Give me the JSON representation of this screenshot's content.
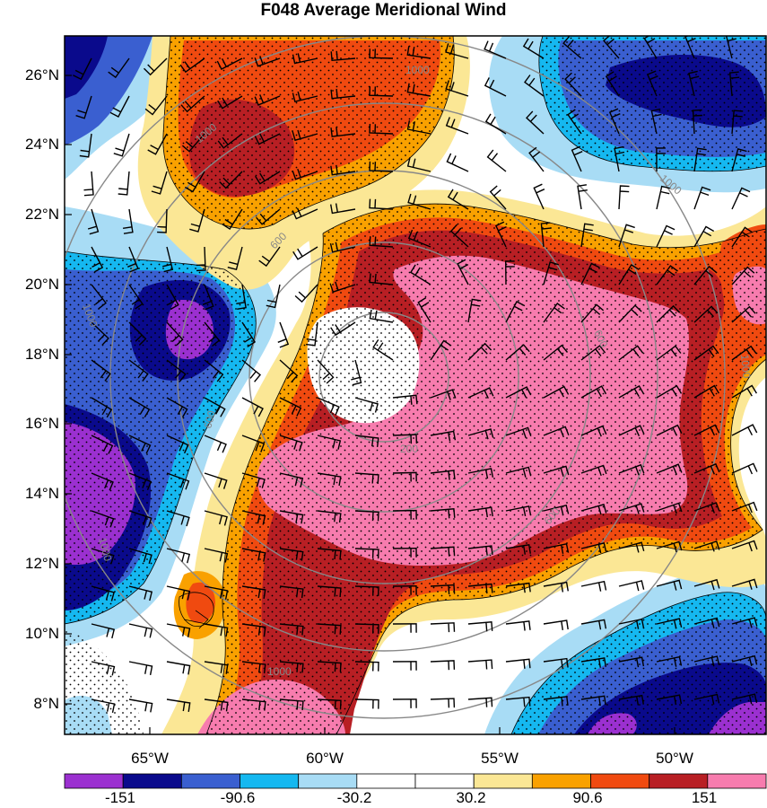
{
  "title": "F048 Average Meridional Wind",
  "map": {
    "lat_labels": [
      "26°N",
      "24°N",
      "22°N",
      "20°N",
      "18°N",
      "16°N",
      "14°N",
      "12°N",
      "10°N",
      "8°N"
    ],
    "lon_labels": [
      "65°W",
      "60°W",
      "55°W",
      "50°W"
    ],
    "radius_contour_labels": [
      "1000",
      "1000",
      "1000",
      "1000",
      "600",
      "600",
      "600",
      "600",
      "200",
      "1000",
      "1000",
      "1000"
    ]
  },
  "colorbar": {
    "labels": [
      "-151",
      "-90.6",
      "-30.2",
      "30.2",
      "90.6",
      "151"
    ],
    "colors": [
      "#9b30d0",
      "#0a0a8c",
      "#3a5fd0",
      "#15b8f0",
      "#a8dcf5",
      "#ffffff",
      "#ffffff",
      "#fbe795",
      "#f9a100",
      "#f04a10",
      "#b81f24",
      "#f77cae"
    ]
  },
  "colors": {
    "pink": "#f77cae",
    "darkred": "#b81f24",
    "red": "#f04a10",
    "orange": "#f9a100",
    "yellow": "#fbe795",
    "lightblue": "#a8dcf5",
    "cyan": "#15b8f0",
    "blue": "#3a5fd0",
    "navy": "#0a0a8c",
    "purple": "#9b30d0",
    "contour": "#888888"
  }
}
